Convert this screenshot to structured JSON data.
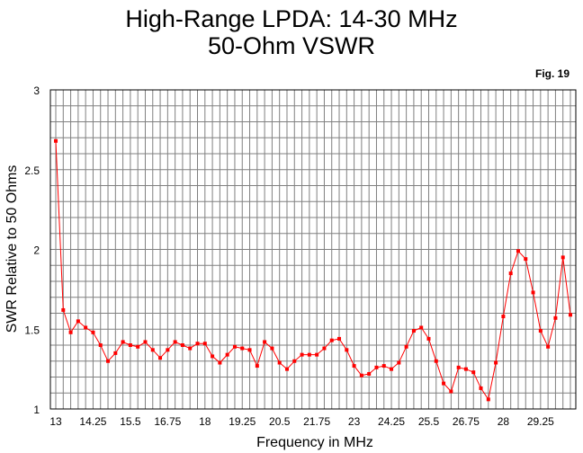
{
  "title_line1": "High-Range LPDA:  14-30 MHz",
  "title_line2": "50-Ohm VSWR",
  "fig_label": "Fig. 19",
  "chart_data": {
    "type": "line",
    "xlabel": "Frequency in MHz",
    "ylabel": "SWR Relative to 50 Ohms",
    "xlim": [
      13,
      30.25
    ],
    "ylim": [
      1,
      3
    ],
    "x_ticks": [
      "13",
      "14.25",
      "15.5",
      "16.75",
      "18",
      "19.25",
      "20.5",
      "21.75",
      "23",
      "24.25",
      "25.5",
      "26.75",
      "28",
      "29.25"
    ],
    "y_ticks": [
      "1",
      "1.5",
      "2",
      "2.5",
      "3"
    ],
    "grid": true,
    "line_color": "#ff0000",
    "series": [
      {
        "x": [
          13.0,
          13.25,
          13.5,
          13.75,
          14.0,
          14.25,
          14.5,
          14.75,
          15.0,
          15.25,
          15.5,
          15.75,
          16.0,
          16.25,
          16.5,
          16.75,
          17.0,
          17.25,
          17.5,
          17.75,
          18.0,
          18.25,
          18.5,
          18.75,
          19.0,
          19.25,
          19.5,
          19.75,
          20.0,
          20.25,
          20.5,
          20.75,
          21.0,
          21.25,
          21.5,
          21.75,
          22.0,
          22.25,
          22.5,
          22.75,
          23.0,
          23.25,
          23.5,
          23.75,
          24.0,
          24.25,
          24.5,
          24.75,
          25.0,
          25.25,
          25.5,
          25.75,
          26.0,
          26.25,
          26.5,
          26.75,
          27.0,
          27.25,
          27.5,
          27.75,
          28.0,
          28.25,
          28.5,
          28.75,
          29.0,
          29.25,
          29.5,
          29.75,
          30.0,
          30.25
        ],
        "values": [
          2.68,
          1.62,
          1.48,
          1.55,
          1.51,
          1.48,
          1.4,
          1.3,
          1.35,
          1.42,
          1.4,
          1.39,
          1.42,
          1.37,
          1.32,
          1.37,
          1.42,
          1.4,
          1.38,
          1.41,
          1.41,
          1.33,
          1.29,
          1.34,
          1.39,
          1.38,
          1.37,
          1.27,
          1.42,
          1.38,
          1.29,
          1.25,
          1.3,
          1.34,
          1.34,
          1.34,
          1.38,
          1.43,
          1.44,
          1.37,
          1.27,
          1.21,
          1.22,
          1.26,
          1.27,
          1.25,
          1.29,
          1.39,
          1.49,
          1.51,
          1.44,
          1.3,
          1.16,
          1.11,
          1.26,
          1.25,
          1.23,
          1.13,
          1.06,
          1.29,
          1.58,
          1.85,
          1.99,
          1.94,
          1.73,
          1.49,
          1.39,
          1.57,
          1.95,
          1.59
        ]
      }
    ]
  }
}
